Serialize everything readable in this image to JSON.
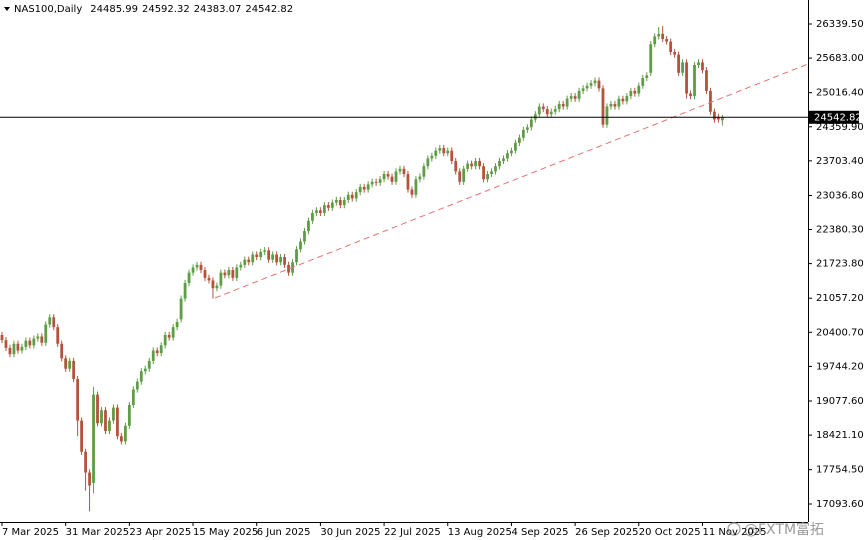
{
  "chart_data": {
    "type": "candlestick",
    "title": "NAS100,Daily",
    "watermark": "@FXTM富拓",
    "up_color": "#5e9c45",
    "down_color": "#b4533c",
    "last_line_color": "#000000",
    "categories": [
      "7 Mar 2025",
      null,
      null,
      null,
      null,
      null,
      null,
      null,
      null,
      null,
      null,
      null,
      null,
      null,
      null,
      null,
      "31 Mar 2025",
      null,
      null,
      null,
      null,
      null,
      null,
      null,
      null,
      null,
      null,
      null,
      null,
      null,
      null,
      null,
      "23 Apr 2025",
      null,
      null,
      null,
      null,
      null,
      null,
      null,
      null,
      null,
      null,
      null,
      null,
      null,
      null,
      null,
      "15 May 2025",
      null,
      null,
      null,
      null,
      null,
      null,
      null,
      null,
      null,
      null,
      null,
      null,
      null,
      null,
      null,
      "6 Jun 2025",
      null,
      null,
      null,
      null,
      null,
      null,
      null,
      null,
      null,
      null,
      null,
      null,
      null,
      null,
      null,
      "30 Jun 2025",
      null,
      null,
      null,
      null,
      null,
      null,
      null,
      null,
      null,
      null,
      null,
      null,
      null,
      null,
      null,
      "22 Jul 2025",
      null,
      null,
      null,
      null,
      null,
      null,
      null,
      null,
      null,
      null,
      null,
      null,
      null,
      null,
      null,
      "13 Aug 2025",
      null,
      null,
      null,
      null,
      null,
      null,
      null,
      null,
      null,
      null,
      null,
      null,
      null,
      null,
      null,
      "4 Sep 2025",
      null,
      null,
      null,
      null,
      null,
      null,
      null,
      null,
      null,
      null,
      null,
      null,
      null,
      null,
      null,
      "26 Sep 2025",
      null,
      null,
      null,
      null,
      null,
      null,
      null,
      null,
      null,
      null,
      null,
      null,
      null,
      null,
      null,
      "20 Oct 2025",
      null,
      null,
      null,
      null,
      null,
      null,
      null,
      null,
      null,
      null,
      null,
      null,
      null,
      null,
      null,
      "11 Nov 2025",
      null,
      null,
      null,
      null,
      null
    ],
    "open": [
      20350,
      20250,
      20100,
      19980,
      20180,
      20050,
      20120,
      20240,
      20150,
      20280,
      20320,
      20200,
      20550,
      20690,
      20500,
      20180,
      19900,
      19700,
      19850,
      19500,
      18700,
      18100,
      17700,
      17500,
      19200,
      18650,
      18900,
      18500,
      18700,
      18950,
      18400,
      18300,
      18600,
      19000,
      19300,
      19450,
      19650,
      19700,
      19850,
      20050,
      20000,
      20150,
      20350,
      20300,
      20500,
      20650,
      21050,
      21350,
      21550,
      21650,
      21700,
      21600,
      21450,
      21400,
      21250,
      21300,
      21550,
      21500,
      21600,
      21450,
      21650,
      21700,
      21800,
      21750,
      21900,
      21850,
      21950,
      21980,
      21800,
      21900,
      21750,
      21850,
      21700,
      21550,
      21750,
      22000,
      22150,
      22350,
      22550,
      22700,
      22750,
      22700,
      22850,
      22800,
      22900,
      22950,
      22850,
      22950,
      23050,
      22980,
      23100,
      23200,
      23150,
      23250,
      23300,
      23280,
      23350,
      23450,
      23400,
      23300,
      23500,
      23550,
      23450,
      23150,
      23050,
      23350,
      23400,
      23600,
      23750,
      23800,
      23900,
      23950,
      23850,
      23900,
      23700,
      23500,
      23300,
      23550,
      23650,
      23600,
      23700,
      23600,
      23350,
      23450,
      23500,
      23600,
      23700,
      23750,
      23850,
      23900,
      24050,
      24150,
      24300,
      24350,
      24500,
      24600,
      24750,
      24700,
      24600,
      24650,
      24700,
      24800,
      24750,
      24900,
      24950,
      24900,
      25050,
      25100,
      25150,
      25200,
      25250,
      25100,
      24400,
      24750,
      24800,
      24750,
      24900,
      24850,
      24950,
      25050,
      25000,
      25150,
      25300,
      25400,
      25950,
      26100,
      26150,
      26050,
      26000,
      25800,
      25750,
      25400,
      25600,
      25000,
      24950,
      25550,
      25600,
      25450,
      25050,
      24650,
      24550,
      24485.99
    ],
    "high": [
      20410,
      20310,
      20160,
      20240,
      20240,
      20180,
      20300,
      20300,
      20340,
      20380,
      20380,
      20610,
      20750,
      20750,
      20560,
      20240,
      19960,
      19910,
      19910,
      19560,
      18760,
      18160,
      17760,
      19350,
      19260,
      18960,
      18960,
      18760,
      19010,
      19010,
      18460,
      18660,
      19060,
      19360,
      19510,
      19710,
      19760,
      19910,
      20110,
      20110,
      20210,
      20410,
      20410,
      20560,
      20660,
      21110,
      21410,
      21610,
      21710,
      21760,
      21760,
      21660,
      21510,
      21460,
      21360,
      21610,
      21610,
      21660,
      21660,
      21710,
      21760,
      21860,
      21860,
      21960,
      21960,
      22010,
      22040,
      22040,
      21960,
      21960,
      21910,
      21910,
      21760,
      21810,
      22060,
      22210,
      22410,
      22610,
      22760,
      22810,
      22810,
      22910,
      22910,
      22960,
      23010,
      23010,
      23010,
      23110,
      23110,
      23160,
      23260,
      23260,
      23310,
      23360,
      23360,
      23410,
      23510,
      23510,
      23460,
      23560,
      23610,
      23610,
      23510,
      23210,
      23410,
      23460,
      23660,
      23810,
      23860,
      23960,
      24010,
      24010,
      23960,
      23960,
      23760,
      23560,
      23610,
      23710,
      23710,
      23760,
      23760,
      23660,
      23510,
      23560,
      23660,
      23760,
      23810,
      23910,
      23960,
      24110,
      24210,
      24360,
      24410,
      24560,
      24660,
      24810,
      24810,
      24760,
      24710,
      24760,
      24860,
      24860,
      24960,
      25010,
      25010,
      25110,
      25160,
      25210,
      25260,
      25310,
      25310,
      25160,
      24810,
      24860,
      24860,
      24960,
      24960,
      25010,
      25110,
      25110,
      25210,
      25360,
      25410,
      26010,
      26160,
      26280,
      26300,
      26110,
      26060,
      25860,
      25810,
      25660,
      25660,
      25060,
      25610,
      25660,
      25660,
      25510,
      25110,
      24710,
      24610,
      24592.32
    ],
    "low": [
      20190,
      20040,
      19920,
      19920,
      19990,
      19990,
      20060,
      20090,
      20090,
      20220,
      20140,
      20140,
      20490,
      20440,
      20120,
      19840,
      19640,
      19640,
      19440,
      18400,
      18040,
      17350,
      16950,
      17300,
      18590,
      18590,
      18440,
      18440,
      18640,
      18340,
      18240,
      18240,
      18540,
      18940,
      19240,
      19390,
      19590,
      19640,
      19790,
      19940,
      19940,
      20090,
      20240,
      20240,
      20440,
      20590,
      20990,
      21290,
      21490,
      21590,
      21540,
      21390,
      21340,
      21050,
      21190,
      21240,
      21440,
      21440,
      21390,
      21390,
      21590,
      21640,
      21690,
      21690,
      21790,
      21790,
      21890,
      21740,
      21740,
      21690,
      21690,
      21640,
      21490,
      21490,
      21690,
      21940,
      22090,
      22290,
      22490,
      22640,
      22640,
      22640,
      22740,
      22740,
      22840,
      22790,
      22790,
      22890,
      22920,
      22920,
      23040,
      23090,
      23090,
      23190,
      23220,
      23220,
      23290,
      23340,
      23240,
      23240,
      23440,
      23390,
      23090,
      22990,
      22990,
      23290,
      23340,
      23540,
      23690,
      23740,
      23840,
      23790,
      23790,
      23640,
      23440,
      23240,
      23240,
      23490,
      23540,
      23540,
      23540,
      23290,
      23290,
      23390,
      23440,
      23540,
      23640,
      23690,
      23790,
      23840,
      23990,
      24090,
      24240,
      24290,
      24440,
      24540,
      24640,
      24540,
      24540,
      24590,
      24640,
      24690,
      24690,
      24840,
      24840,
      24840,
      24990,
      25040,
      25090,
      25140,
      25040,
      24340,
      24340,
      24690,
      24690,
      24690,
      24790,
      24790,
      24890,
      24940,
      24940,
      25090,
      25240,
      25340,
      25890,
      26040,
      25990,
      25940,
      25740,
      25690,
      25340,
      25340,
      24900,
      24890,
      24890,
      25490,
      25390,
      24990,
      24590,
      24440,
      24440,
      24383.07
    ],
    "close": [
      20250,
      20100,
      19980,
      20180,
      20050,
      20120,
      20240,
      20150,
      20280,
      20320,
      20200,
      20550,
      20690,
      20500,
      20180,
      19900,
      19700,
      19850,
      19500,
      18700,
      18100,
      17700,
      17450,
      19200,
      18650,
      18900,
      18500,
      18700,
      18950,
      18400,
      18300,
      18600,
      19000,
      19300,
      19450,
      19650,
      19700,
      19850,
      20050,
      20000,
      20150,
      20350,
      20300,
      20500,
      20600,
      21050,
      21350,
      21550,
      21650,
      21700,
      21600,
      21450,
      21400,
      21250,
      21300,
      21550,
      21500,
      21600,
      21450,
      21650,
      21700,
      21800,
      21750,
      21900,
      21850,
      21950,
      21980,
      21800,
      21900,
      21750,
      21850,
      21700,
      21550,
      21750,
      22000,
      22150,
      22350,
      22550,
      22700,
      22750,
      22700,
      22850,
      22800,
      22900,
      22950,
      22850,
      22950,
      23050,
      22980,
      23100,
      23200,
      23150,
      23250,
      23300,
      23280,
      23350,
      23450,
      23400,
      23300,
      23500,
      23550,
      23450,
      23150,
      23050,
      23350,
      23400,
      23600,
      23750,
      23800,
      23900,
      23950,
      23850,
      23900,
      23700,
      23500,
      23300,
      23550,
      23650,
      23600,
      23700,
      23600,
      23350,
      23450,
      23500,
      23600,
      23700,
      23750,
      23850,
      23900,
      24050,
      24150,
      24300,
      24350,
      24500,
      24600,
      24750,
      24700,
      24600,
      24650,
      24700,
      24800,
      24750,
      24900,
      24950,
      24900,
      25050,
      25100,
      25150,
      25200,
      25250,
      25100,
      24400,
      24750,
      24800,
      24750,
      24900,
      24850,
      24950,
      25050,
      25000,
      25150,
      25300,
      25350,
      25950,
      26100,
      26150,
      26050,
      26000,
      25800,
      25750,
      25400,
      25600,
      25000,
      24950,
      25550,
      25600,
      25450,
      25050,
      24650,
      24500,
      24500,
      24542.82
    ],
    "ylim": [
      16746.9,
      26763.3
    ],
    "yticks": [
      {
        "value": 26339.5,
        "label": "26339.50"
      },
      {
        "value": 25683,
        "label": "25683.00"
      },
      {
        "value": 25016.4,
        "label": "25016.40"
      },
      {
        "value": 24359.9,
        "label": "24359.90"
      },
      {
        "value": 23703.4,
        "label": "23703.40"
      },
      {
        "value": 23036.8,
        "label": "23036.80"
      },
      {
        "value": 22380.3,
        "label": "22380.30"
      },
      {
        "value": 21723.8,
        "label": "21723.80"
      },
      {
        "value": 21057.2,
        "label": "21057.20"
      },
      {
        "value": 20400.7,
        "label": "20400.70"
      },
      {
        "value": 19744.2,
        "label": "19744.20"
      },
      {
        "value": 19077.6,
        "label": "19077.60"
      },
      {
        "value": 18421.1,
        "label": "18421.10"
      },
      {
        "value": 17754.5,
        "label": "17754.50"
      },
      {
        "value": 17093.6,
        "label": "17093.60"
      }
    ]
  }
}
